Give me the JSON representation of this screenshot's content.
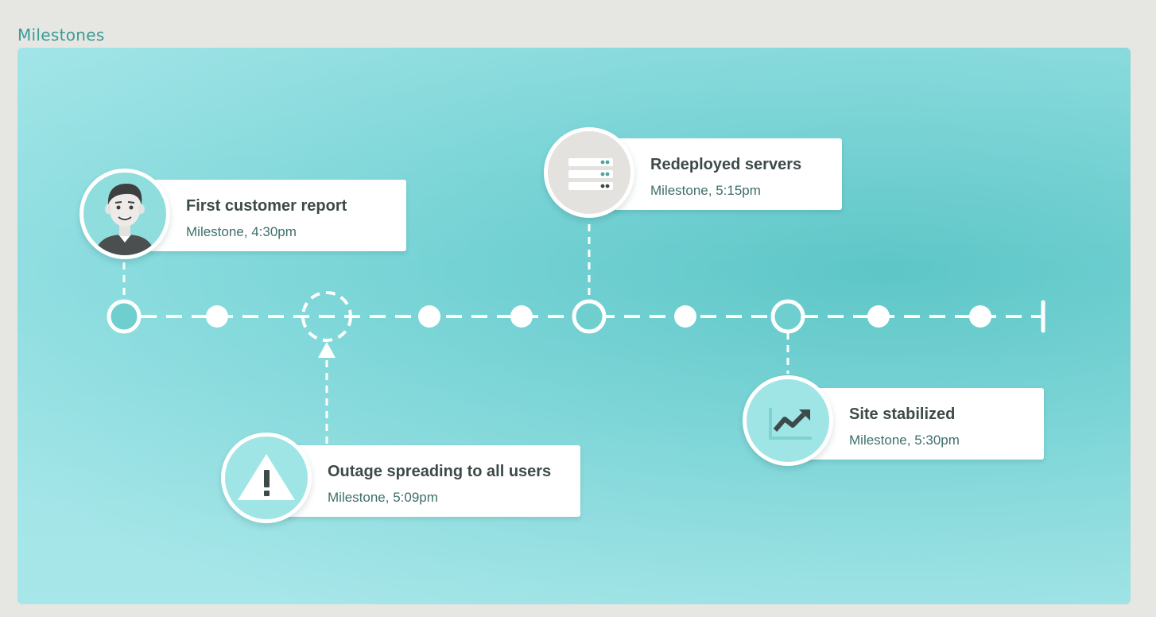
{
  "page": {
    "title": "Milestones"
  },
  "colors": {
    "panel": "#78d4d6",
    "accent_text": "#3a9c97",
    "card_title": "#3d4a4a",
    "card_subtitle": "#3d6f6c",
    "line": "#ffffff"
  },
  "milestones": [
    {
      "title": "First customer report",
      "subtitle": "Milestone, 4:30pm",
      "icon": "person-avatar-icon"
    },
    {
      "title": "Outage spreading to all users",
      "subtitle": "Milestone, 5:09pm",
      "icon": "warning-icon"
    },
    {
      "title": "Redeployed servers",
      "subtitle": "Milestone, 5:15pm",
      "icon": "server-icon"
    },
    {
      "title": "Site stabilized",
      "subtitle": "Milestone, 5:30pm",
      "icon": "trend-up-chart-icon"
    }
  ]
}
